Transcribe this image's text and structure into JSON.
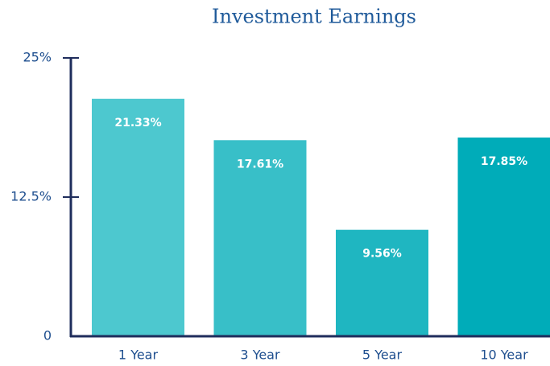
{
  "chart_data": {
    "type": "bar",
    "title": "Investment Earnings",
    "categories": [
      "1 Year",
      "3 Year",
      "5 Year",
      "10 Year"
    ],
    "values": [
      21.33,
      17.61,
      9.56,
      17.85
    ],
    "value_labels": [
      "21.33%",
      "17.61%",
      "9.56%",
      "17.85%"
    ],
    "colors": [
      "#4dc8cf",
      "#38bfc8",
      "#1fb6c1",
      "#00acb9"
    ],
    "ylim": [
      0,
      25
    ],
    "yticks": [
      0,
      {
        "value": 12.5,
        "label": "12.5%"
      },
      {
        "value": 25,
        "label": "25%"
      }
    ]
  }
}
